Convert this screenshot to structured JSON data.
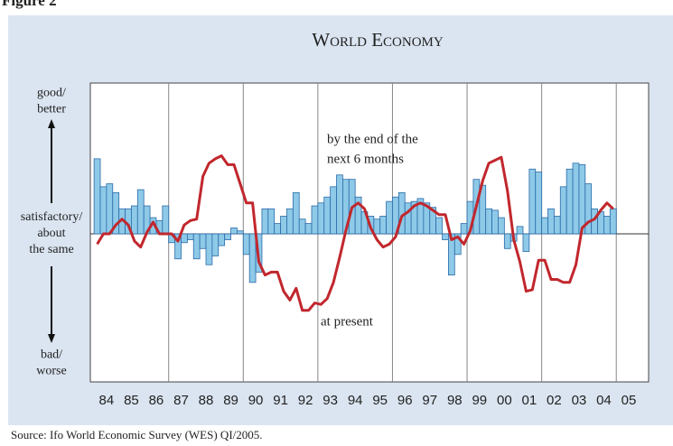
{
  "figure_label": "Figure 2",
  "source": "Source: Ifo World Economic Survey (WES) QI/2005.",
  "chart_data": {
    "type": "bar-line",
    "title": "World Economy",
    "annotations": [
      [
        "by the end of the",
        "next 6 months"
      ],
      [
        "at present"
      ]
    ],
    "x": [
      1984.125,
      1984.375,
      1984.625,
      1984.875,
      1985.125,
      1985.375,
      1985.625,
      1985.875,
      1986.125,
      1986.375,
      1986.625,
      1986.875,
      1987.125,
      1987.375,
      1987.625,
      1987.875,
      1988.125,
      1988.375,
      1988.625,
      1988.875,
      1989.125,
      1989.375,
      1989.625,
      1989.875,
      1990.125,
      1990.375,
      1990.625,
      1990.875,
      1991.125,
      1991.375,
      1991.625,
      1991.875,
      1992.125,
      1992.375,
      1992.625,
      1992.875,
      1993.125,
      1993.375,
      1993.625,
      1993.875,
      1994.125,
      1994.375,
      1994.625,
      1994.875,
      1995.125,
      1995.375,
      1995.625,
      1995.875,
      1996.125,
      1996.375,
      1996.625,
      1996.875,
      1997.125,
      1997.375,
      1997.625,
      1997.875,
      1998.125,
      1998.375,
      1998.625,
      1998.875,
      1999.125,
      1999.375,
      1999.625,
      1999.875,
      2000.125,
      2000.375,
      2000.625,
      2000.875,
      2001.125,
      2001.375,
      2001.625,
      2001.875,
      2002.125,
      2002.375,
      2002.625,
      2002.875,
      2003.125,
      2003.375,
      2003.625,
      2003.875,
      2004.125,
      2004.375,
      2004.625,
      2004.875
    ],
    "series": [
      {
        "kind": "bar",
        "color": "#8ecae8",
        "edge": "#2b6aa8",
        "values": [
          51,
          32,
          34,
          28,
          17,
          17,
          19,
          30,
          19,
          11,
          9,
          19,
          -6,
          -17,
          -6,
          -4,
          -17,
          -10,
          -21,
          -15,
          -8,
          -4,
          4,
          2,
          -14,
          -33,
          -26,
          17,
          17,
          7,
          12,
          17,
          28,
          10,
          7,
          19,
          21,
          25,
          32,
          40,
          37,
          37,
          25,
          15,
          12,
          10,
          12,
          22,
          25,
          28,
          21,
          22,
          24,
          21,
          18,
          11,
          -4,
          -28,
          -14,
          7,
          22,
          37,
          33,
          17,
          16,
          11,
          -10,
          -5,
          5,
          -12,
          44,
          42,
          11,
          17,
          12,
          32,
          44,
          48,
          47,
          34,
          17,
          15,
          12,
          17
        ]
      },
      {
        "kind": "line",
        "color": "#c1272d",
        "values": [
          -7,
          0,
          0,
          6,
          10,
          6,
          -5,
          -9,
          1,
          8,
          0,
          0,
          0,
          -5,
          6,
          9,
          10,
          39,
          48,
          51,
          53,
          47,
          47,
          34,
          21,
          21,
          -19,
          -28,
          -26,
          -26,
          -39,
          -45,
          -37,
          -52,
          -52,
          -47,
          -48,
          -44,
          -33,
          -16,
          2,
          18,
          21,
          17,
          4,
          -4,
          -9,
          -7,
          -2,
          12,
          15,
          19,
          21,
          19,
          16,
          13,
          13,
          -4,
          -2,
          -7,
          2,
          19,
          36,
          48,
          50,
          52,
          29,
          -4,
          -19,
          -39,
          -38,
          -18,
          -18,
          -31,
          -31,
          -33,
          -33,
          -21,
          4,
          8,
          10,
          16,
          21,
          17
        ]
      }
    ],
    "xlim": [
      1983.85,
      2006.3
    ],
    "ylim": [
      -100,
      100
    ],
    "xticks": [
      {
        "value": 1984.5,
        "label": "84"
      },
      {
        "value": 1985.5,
        "label": "85"
      },
      {
        "value": 1986.5,
        "label": "86"
      },
      {
        "value": 1987.5,
        "label": "87"
      },
      {
        "value": 1988.5,
        "label": "88"
      },
      {
        "value": 1989.5,
        "label": "89"
      },
      {
        "value": 1990.5,
        "label": "90"
      },
      {
        "value": 1991.5,
        "label": "91"
      },
      {
        "value": 1992.5,
        "label": "92"
      },
      {
        "value": 1993.5,
        "label": "93"
      },
      {
        "value": 1994.5,
        "label": "94"
      },
      {
        "value": 1995.5,
        "label": "95"
      },
      {
        "value": 1996.5,
        "label": "96"
      },
      {
        "value": 1997.5,
        "label": "97"
      },
      {
        "value": 1998.5,
        "label": "98"
      },
      {
        "value": 1999.5,
        "label": "99"
      },
      {
        "value": 2000.5,
        "label": "00"
      },
      {
        "value": 2001.5,
        "label": "01"
      },
      {
        "value": 2002.5,
        "label": "02"
      },
      {
        "value": 2003.5,
        "label": "03"
      },
      {
        "value": 2004.5,
        "label": "04"
      },
      {
        "value": 2005.5,
        "label": "05"
      }
    ],
    "yticks": [
      {
        "value": 90,
        "label": "good/\nbetter"
      },
      {
        "value": 0,
        "label": "satisfactory/\nabout\nthe same"
      },
      {
        "value": -88,
        "label": "bad/\nworse"
      }
    ],
    "xgrid": [
      1987,
      1990,
      1993,
      1996,
      1999,
      2002,
      2005
    ]
  }
}
